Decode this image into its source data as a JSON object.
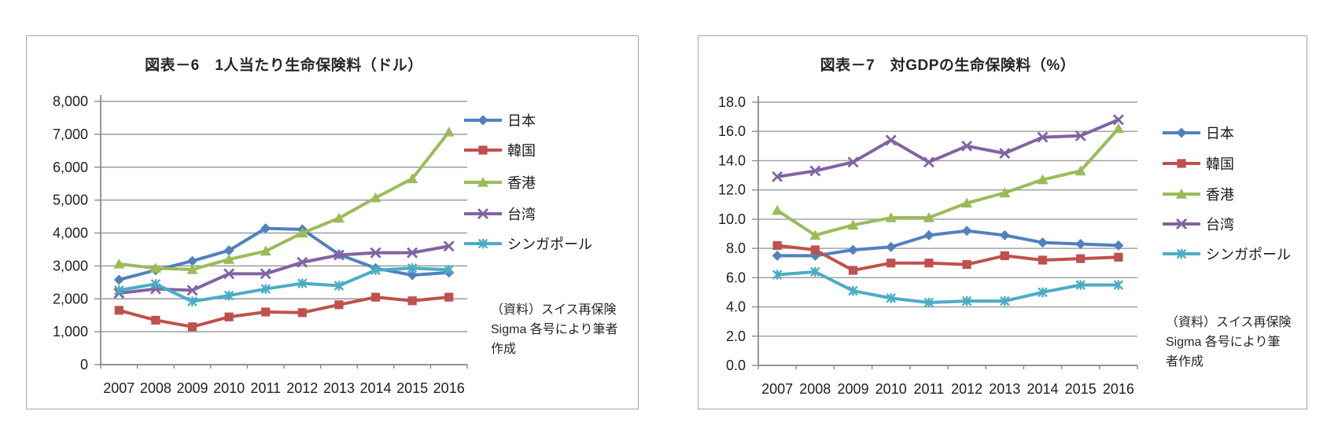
{
  "styles": {
    "background": "#ffffff",
    "text_color": "#1f1f1f",
    "grid_color": "#9b9b9b",
    "axis_color": "#8a8a8a",
    "box_border_color": "#a6a6a6"
  },
  "chart_data": [
    {
      "type": "line",
      "title": "図表－6　1人当たり生命保険料（ドル）",
      "categories": [
        "2007",
        "2008",
        "2009",
        "2010",
        "2011",
        "2012",
        "2013",
        "2014",
        "2015",
        "2016"
      ],
      "xlabel": "",
      "ylabel": "",
      "ylim": [
        0,
        8000
      ],
      "y_tick_step": 1000,
      "y_tick_labels": [
        "8,000",
        "7,000",
        "6,000",
        "5,000",
        "4,000",
        "3,000",
        "2,000",
        "1,000",
        "0"
      ],
      "grid": true,
      "legend_position": "right",
      "series": [
        {
          "key": "japan",
          "name": "日本",
          "color": "#4F81BD",
          "marker": "diamond",
          "values": [
            2580,
            2870,
            3150,
            3470,
            4140,
            4110,
            3350,
            2930,
            2720,
            2800
          ]
        },
        {
          "key": "korea",
          "name": "韓国",
          "color": "#C0504D",
          "marker": "square",
          "values": [
            1650,
            1350,
            1150,
            1450,
            1600,
            1580,
            1820,
            2050,
            1940,
            2050
          ]
        },
        {
          "key": "hongkong",
          "name": "香港",
          "color": "#9BBB59",
          "marker": "triangle",
          "values": [
            3060,
            2930,
            2890,
            3200,
            3450,
            4000,
            4450,
            5070,
            5650,
            7070
          ]
        },
        {
          "key": "taiwan",
          "name": "台湾",
          "color": "#8064A2",
          "marker": "x",
          "values": [
            2170,
            2300,
            2260,
            2760,
            2760,
            3110,
            3330,
            3400,
            3400,
            3600
          ]
        },
        {
          "key": "singapore",
          "name": "シンガポール",
          "color": "#4BACC6",
          "marker": "asterisk",
          "values": [
            2260,
            2450,
            1920,
            2100,
            2300,
            2470,
            2400,
            2870,
            2930,
            2880
          ]
        }
      ],
      "source_note_lines": [
        "（資料）スイス再保険",
        "Sigma 各号により筆者",
        "作成"
      ]
    },
    {
      "type": "line",
      "title": "図表－7　対GDPの生命保険料（%）",
      "categories": [
        "2007",
        "2008",
        "2009",
        "2010",
        "2011",
        "2012",
        "2013",
        "2014",
        "2015",
        "2016"
      ],
      "xlabel": "",
      "ylabel": "",
      "ylim": [
        0,
        18
      ],
      "y_tick_step": 2,
      "y_tick_labels": [
        "18.0",
        "16.0",
        "14.0",
        "12.0",
        "10.0",
        "8.0",
        "6.0",
        "4.0",
        "2.0",
        "0.0"
      ],
      "grid": true,
      "legend_position": "right",
      "series": [
        {
          "key": "japan",
          "name": "日本",
          "color": "#4F81BD",
          "marker": "diamond",
          "values": [
            7.5,
            7.5,
            7.9,
            8.1,
            8.9,
            9.2,
            8.9,
            8.4,
            8.3,
            8.2
          ]
        },
        {
          "key": "korea",
          "name": "韓国",
          "color": "#C0504D",
          "marker": "square",
          "values": [
            8.2,
            7.9,
            6.5,
            7.0,
            7.0,
            6.9,
            7.5,
            7.2,
            7.3,
            7.4
          ]
        },
        {
          "key": "hongkong",
          "name": "香港",
          "color": "#9BBB59",
          "marker": "triangle",
          "values": [
            10.6,
            8.9,
            9.6,
            10.1,
            10.1,
            11.1,
            11.8,
            12.7,
            13.3,
            16.2
          ]
        },
        {
          "key": "taiwan",
          "name": "台湾",
          "color": "#8064A2",
          "marker": "x",
          "values": [
            12.9,
            13.3,
            13.9,
            15.4,
            13.9,
            15.0,
            14.5,
            15.6,
            15.7,
            16.8
          ]
        },
        {
          "key": "singapore",
          "name": "シンガポール",
          "color": "#4BACC6",
          "marker": "asterisk",
          "values": [
            6.2,
            6.4,
            5.1,
            4.6,
            4.3,
            4.4,
            4.4,
            5.0,
            5.5,
            5.5
          ]
        }
      ],
      "source_note_lines": [
        "（資料）スイス再保険",
        "Sigma 各号により筆",
        "者作成"
      ]
    }
  ]
}
